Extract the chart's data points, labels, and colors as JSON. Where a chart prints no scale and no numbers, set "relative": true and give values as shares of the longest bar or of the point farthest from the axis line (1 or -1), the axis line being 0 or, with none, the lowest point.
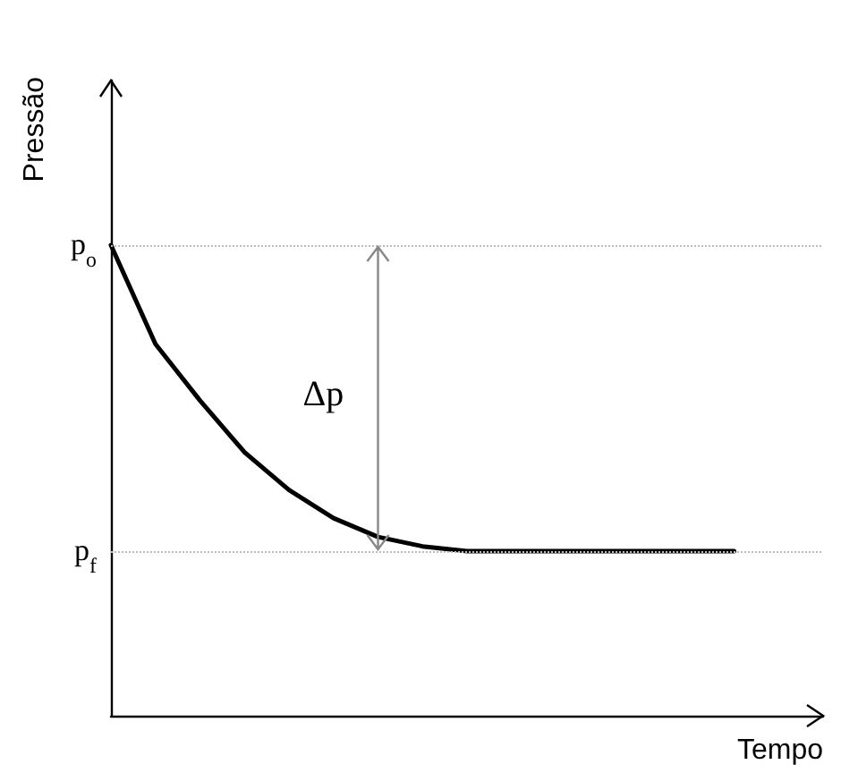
{
  "chart_data": {
    "type": "line",
    "relative": true,
    "xlabel": "Tempo",
    "ylabel": "Pressão",
    "categories": [
      null,
      null,
      null,
      null,
      null,
      null,
      null,
      null,
      null,
      null,
      null,
      null,
      null,
      null,
      null,
      null,
      null
    ],
    "series": [
      {
        "color": "#000000",
        "values": [
          1.0,
          0.79,
          0.67,
          0.56,
          0.48,
          0.42,
          0.38,
          0.36,
          0.35,
          0.35,
          0.35,
          0.35,
          0.35,
          0.35,
          0.35,
          null,
          null
        ]
      }
    ],
    "ref_lines": [
      {
        "axis": "y",
        "value": 1.0,
        "label": "p$_{o}$",
        "color": "#bbbbbb",
        "line_style": "dotted"
      },
      {
        "axis": "y",
        "value": 0.35,
        "label": "p$_{f}$",
        "color": "#bbbbbb",
        "line_style": "dotted"
      }
    ],
    "annotations": [
      "Δp"
    ],
    "marker": "none",
    "line_style": "solid",
    "grid": false
  }
}
